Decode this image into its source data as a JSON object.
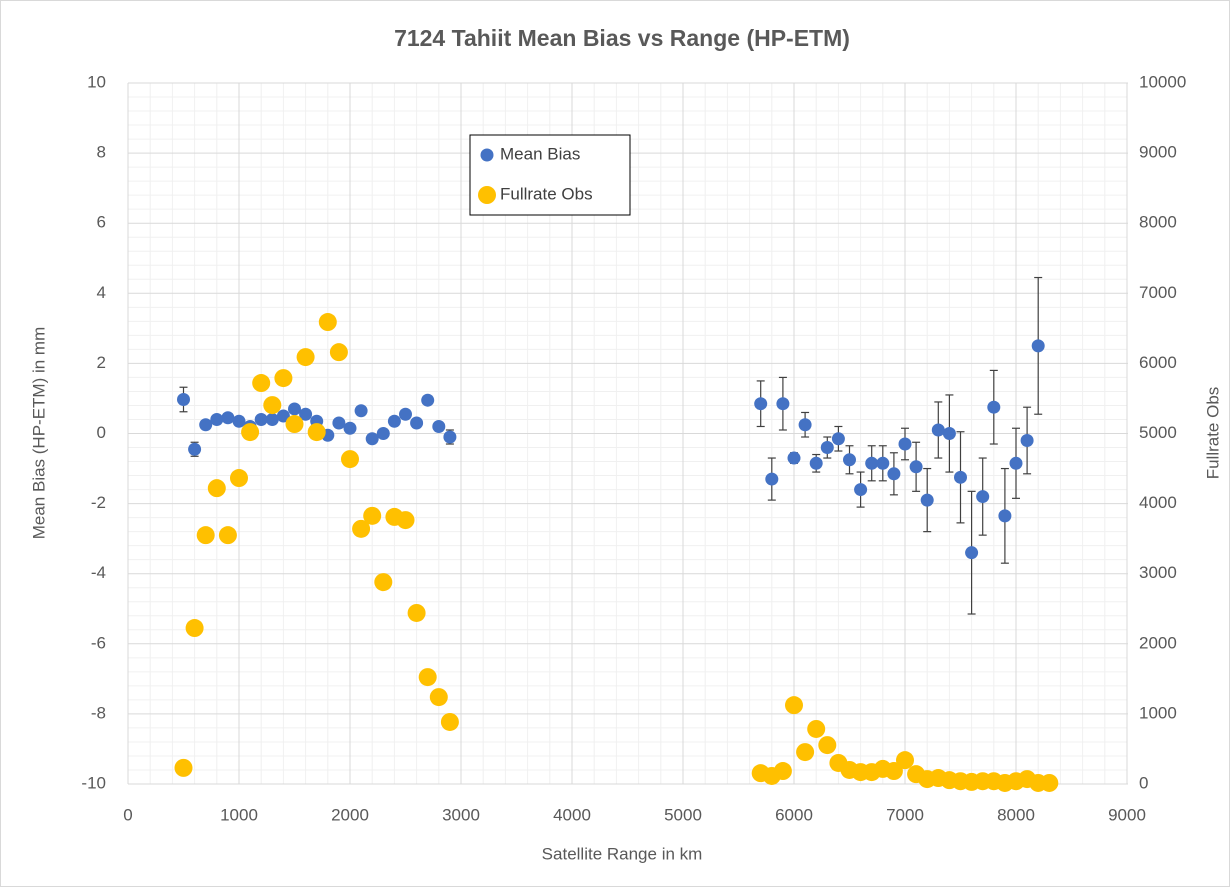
{
  "chart_data": {
    "type": "scatter",
    "title": "7124 Tahiit Mean Bias vs Range (HP-ETM)",
    "x_label": "Satellite Range in km",
    "y_label": "Mean Bias (HP-ETM) in mm",
    "y2_label": "Fullrate Obs",
    "xlim": [
      0,
      9000
    ],
    "xticks": [
      0,
      1000,
      2000,
      3000,
      4000,
      5000,
      6000,
      7000,
      8000,
      9000
    ],
    "ylim": [
      -10,
      10
    ],
    "yticks": [
      -10,
      -8,
      -6,
      -4,
      -2,
      0,
      2,
      4,
      6,
      8,
      10
    ],
    "y2lim": [
      0,
      10000
    ],
    "y2ticks": [
      0,
      1000,
      2000,
      3000,
      4000,
      5000,
      6000,
      7000,
      8000,
      9000,
      10000
    ],
    "grid": true,
    "minor_grid": true,
    "legend_position": "top",
    "series": [
      {
        "name": "Mean Bias",
        "color": "#4472c4",
        "x": [
          500,
          600,
          700,
          800,
          900,
          1000,
          1100,
          1200,
          1300,
          1400,
          1500,
          1600,
          1700,
          1800,
          1900,
          2000,
          2100,
          2200,
          2300,
          2400,
          2500,
          2600,
          2700,
          2800,
          2900,
          5700,
          5800,
          5900,
          6000,
          6100,
          6200,
          6300,
          6400,
          6500,
          6600,
          6700,
          6800,
          6900,
          7000,
          7100,
          7200,
          7300,
          7400,
          7500,
          7600,
          7700,
          7800,
          7900,
          8000,
          8100,
          8200
        ],
        "values": [
          0.97,
          -0.45,
          0.25,
          0.4,
          0.45,
          0.35,
          0.2,
          0.4,
          0.4,
          0.5,
          0.7,
          0.55,
          0.35,
          -0.05,
          0.3,
          0.15,
          0.65,
          -0.15,
          0.0,
          0.35,
          0.55,
          0.3,
          0.95,
          0.2,
          -0.1,
          0.85,
          -1.3,
          0.85,
          -0.7,
          0.25,
          -0.85,
          -0.4,
          -0.15,
          -0.75,
          -1.6,
          -0.85,
          -0.85,
          -1.15,
          -0.3,
          -0.95,
          -1.9,
          0.1,
          0.0,
          -1.25,
          -3.4,
          -1.8,
          0.75,
          -2.35,
          -0.85,
          -0.2,
          2.5
        ],
        "errors": [
          0.35,
          0.2,
          0.1,
          0.1,
          0.1,
          0.1,
          0.1,
          0.1,
          0.1,
          0.1,
          0.1,
          0.1,
          0.1,
          0.1,
          0.1,
          0.1,
          0.1,
          0.1,
          0.1,
          0.1,
          0.1,
          0.1,
          0.1,
          0.1,
          0.2,
          0.65,
          0.6,
          0.75,
          0.15,
          0.35,
          0.25,
          0.3,
          0.35,
          0.4,
          0.5,
          0.5,
          0.5,
          0.6,
          0.45,
          0.7,
          0.9,
          0.8,
          1.1,
          1.3,
          1.75,
          1.1,
          1.05,
          1.35,
          1.0,
          0.95,
          1.95
        ]
      },
      {
        "name": "Fullrate Obs",
        "color": "#ffc000",
        "axis": "y2",
        "x": [
          500,
          600,
          700,
          800,
          900,
          1000,
          1100,
          1200,
          1300,
          1400,
          1500,
          1600,
          1700,
          1800,
          1900,
          2000,
          2100,
          2200,
          2300,
          2400,
          2500,
          2600,
          2700,
          2800,
          2900,
          5700,
          5800,
          5900,
          6000,
          6100,
          6200,
          6300,
          6400,
          6500,
          6600,
          6700,
          6800,
          6900,
          7000,
          7100,
          7200,
          7300,
          7400,
          7500,
          7600,
          7700,
          7800,
          7900,
          8000,
          8100,
          8200,
          8300
        ],
        "values": [
          230,
          2225,
          3550,
          4220,
          3550,
          4365,
          5020,
          5720,
          5405,
          5790,
          5135,
          6090,
          5020,
          6590,
          6160,
          4635,
          3640,
          3825,
          2880,
          3810,
          3765,
          2440,
          1525,
          1240,
          885,
          155,
          115,
          185,
          1125,
          455,
          785,
          555,
          300,
          200,
          170,
          170,
          215,
          185,
          340,
          140,
          70,
          85,
          55,
          40,
          30,
          40,
          40,
          15,
          40,
          70,
          15,
          15
        ]
      }
    ]
  }
}
